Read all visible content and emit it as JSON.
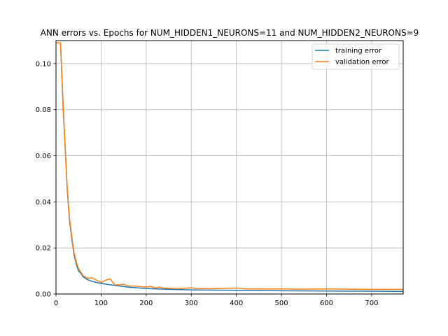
{
  "chart_data": {
    "type": "line",
    "title": "ANN errors vs. Epochs for NUM_HIDDEN1_NEURONS=11 and NUM_HIDDEN2_NEURONS=9",
    "xlabel": "",
    "ylabel": "",
    "xlim": [
      0,
      770
    ],
    "ylim": [
      0,
      0.11
    ],
    "xticks": [
      0,
      100,
      200,
      300,
      400,
      500,
      600,
      700
    ],
    "xtick_labels": [
      "0",
      "100",
      "200",
      "300",
      "400",
      "500",
      "600",
      "700"
    ],
    "yticks": [
      0.0,
      0.02,
      0.04,
      0.06,
      0.08,
      0.1
    ],
    "ytick_labels": [
      "0.00",
      "0.02",
      "0.04",
      "0.06",
      "0.08",
      "0.10"
    ],
    "grid": true,
    "legend_position": "top-right",
    "series": [
      {
        "name": "training error",
        "color": "#1f77b4",
        "x": [
          0,
          5,
          10,
          13,
          16,
          20,
          25,
          30,
          35,
          40,
          45,
          50,
          55,
          60,
          70,
          80,
          90,
          100,
          120,
          140,
          160,
          180,
          200,
          250,
          300,
          400,
          500,
          600,
          700,
          770
        ],
        "y": [
          0.109,
          0.109,
          0.109,
          0.095,
          0.08,
          0.065,
          0.045,
          0.032,
          0.024,
          0.017,
          0.013,
          0.01,
          0.009,
          0.0075,
          0.0062,
          0.0055,
          0.005,
          0.0046,
          0.004,
          0.0035,
          0.003,
          0.0027,
          0.0024,
          0.002,
          0.0018,
          0.0016,
          0.0014,
          0.0013,
          0.0012,
          0.0011
        ]
      },
      {
        "name": "validation error",
        "color": "#ff7f0e",
        "x": [
          0,
          5,
          10,
          13,
          16,
          20,
          25,
          30,
          35,
          40,
          45,
          50,
          55,
          60,
          70,
          80,
          90,
          100,
          110,
          120,
          130,
          140,
          150,
          160,
          180,
          200,
          210,
          220,
          230,
          240,
          260,
          280,
          300,
          310,
          350,
          400,
          420,
          450,
          500,
          550,
          600,
          650,
          700,
          770
        ],
        "y": [
          0.109,
          0.109,
          0.109,
          0.095,
          0.082,
          0.065,
          0.046,
          0.033,
          0.025,
          0.018,
          0.014,
          0.011,
          0.0095,
          0.008,
          0.0068,
          0.007,
          0.006,
          0.005,
          0.006,
          0.0066,
          0.004,
          0.004,
          0.0042,
          0.0035,
          0.0034,
          0.003,
          0.0033,
          0.0026,
          0.003,
          0.0025,
          0.0025,
          0.0024,
          0.0027,
          0.0024,
          0.0023,
          0.0026,
          0.0022,
          0.0022,
          0.0022,
          0.0021,
          0.0022,
          0.0021,
          0.002,
          0.002
        ]
      }
    ]
  }
}
